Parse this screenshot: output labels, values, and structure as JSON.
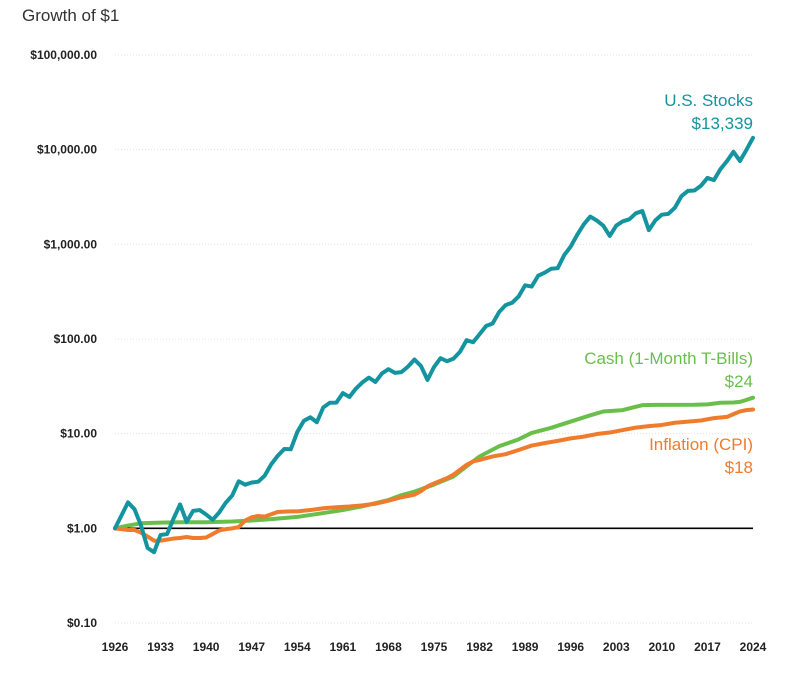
{
  "chart_data": {
    "type": "line",
    "title": "Growth of $1",
    "xlabel": "",
    "ylabel": "",
    "yscale": "log",
    "ylim": [
      0.1,
      100000
    ],
    "y_ticks": [
      0.1,
      1,
      10,
      100,
      1000,
      10000,
      100000
    ],
    "y_tick_labels": [
      "$0.10",
      "$1.00",
      "$10.00",
      "$100.00",
      "$1,000.00",
      "$10,000.00",
      "$100,000.00"
    ],
    "x_ticks": [
      1926,
      1933,
      1940,
      1947,
      1954,
      1961,
      1968,
      1975,
      1982,
      1989,
      1996,
      2003,
      2010,
      2017,
      2024
    ],
    "xlim": [
      1926,
      2024
    ],
    "baseline": 1,
    "colors": {
      "stocks": "#13949f",
      "cash": "#6abf4b",
      "inflation": "#ef7b2d",
      "baseline": "#000000",
      "grid": "#dddddd"
    },
    "series": [
      {
        "key": "stocks",
        "name": "U.S. Stocks",
        "end_label": "$13,339",
        "points": [
          [
            1926,
            1
          ],
          [
            1927,
            1.37
          ],
          [
            1928,
            1.88
          ],
          [
            1929,
            1.59
          ],
          [
            1930,
            1.07
          ],
          [
            1931,
            0.62
          ],
          [
            1932,
            0.56
          ],
          [
            1933,
            0.85
          ],
          [
            1934,
            0.87
          ],
          [
            1935,
            1.27
          ],
          [
            1936,
            1.79
          ],
          [
            1937,
            1.17
          ],
          [
            1938,
            1.53
          ],
          [
            1939,
            1.56
          ],
          [
            1940,
            1.4
          ],
          [
            1941,
            1.23
          ],
          [
            1942,
            1.47
          ],
          [
            1943,
            1.86
          ],
          [
            1944,
            2.22
          ],
          [
            1945,
            3.14
          ],
          [
            1946,
            2.89
          ],
          [
            1947,
            3.05
          ],
          [
            1948,
            3.11
          ],
          [
            1949,
            3.6
          ],
          [
            1950,
            4.75
          ],
          [
            1951,
            5.84
          ],
          [
            1952,
            6.89
          ],
          [
            1953,
            6.84
          ],
          [
            1954,
            10.41
          ],
          [
            1955,
            13.64
          ],
          [
            1956,
            14.9
          ],
          [
            1957,
            13.2
          ],
          [
            1958,
            18.97
          ],
          [
            1959,
            21.23
          ],
          [
            1960,
            21.3
          ],
          [
            1961,
            26.81
          ],
          [
            1962,
            24.42
          ],
          [
            1963,
            29.89
          ],
          [
            1964,
            34.8
          ],
          [
            1965,
            39.1
          ],
          [
            1966,
            35.18
          ],
          [
            1967,
            43.28
          ],
          [
            1968,
            48.0
          ],
          [
            1969,
            43.9
          ],
          [
            1970,
            44.7
          ],
          [
            1971,
            51.1
          ],
          [
            1972,
            60.7
          ],
          [
            1973,
            51.8
          ],
          [
            1974,
            37.0
          ],
          [
            1975,
            50.6
          ],
          [
            1976,
            62.7
          ],
          [
            1977,
            58.2
          ],
          [
            1978,
            62.0
          ],
          [
            1979,
            73.4
          ],
          [
            1980,
            97.1
          ],
          [
            1981,
            92.4
          ],
          [
            1982,
            112.2
          ],
          [
            1983,
            137.2
          ],
          [
            1984,
            145.8
          ],
          [
            1985,
            192.5
          ],
          [
            1986,
            228.2
          ],
          [
            1987,
            241.5
          ],
          [
            1988,
            281.3
          ],
          [
            1989,
            369.2
          ],
          [
            1990,
            357.7
          ],
          [
            1991,
            466.0
          ],
          [
            1992,
            501.9
          ],
          [
            1993,
            552.6
          ],
          [
            1994,
            559.8
          ],
          [
            1995,
            769.8
          ],
          [
            1996,
            946.9
          ],
          [
            1997,
            1262.0
          ],
          [
            1998,
            1623.0
          ],
          [
            1999,
            1965.0
          ],
          [
            2000,
            1786.0
          ],
          [
            2001,
            1574.0
          ],
          [
            2002,
            1227.0
          ],
          [
            2003,
            1579.0
          ],
          [
            2004,
            1751.0
          ],
          [
            2005,
            1837.0
          ],
          [
            2006,
            2127.0
          ],
          [
            2007,
            2245.0
          ],
          [
            2008,
            1414.0
          ],
          [
            2009,
            1789.0
          ],
          [
            2010,
            2057.0
          ],
          [
            2011,
            2100.0
          ],
          [
            2012,
            2437.0
          ],
          [
            2013,
            3224.0
          ],
          [
            2014,
            3669.0
          ],
          [
            2015,
            3705.0
          ],
          [
            2016,
            4152.0
          ],
          [
            2017,
            5026.0
          ],
          [
            2018,
            4763.0
          ],
          [
            2019,
            6234.0
          ],
          [
            2020,
            7573.0
          ],
          [
            2021,
            9498.0
          ],
          [
            2022,
            7601.0
          ],
          [
            2023,
            9993.0
          ],
          [
            2024,
            13339.0
          ]
        ]
      },
      {
        "key": "cash",
        "name": "Cash (1-Month T-Bills)",
        "end_label": "$24",
        "points": [
          [
            1926,
            1
          ],
          [
            1928,
            1.07
          ],
          [
            1930,
            1.13
          ],
          [
            1933,
            1.15
          ],
          [
            1936,
            1.16
          ],
          [
            1940,
            1.16
          ],
          [
            1944,
            1.18
          ],
          [
            1947,
            1.21
          ],
          [
            1950,
            1.25
          ],
          [
            1954,
            1.32
          ],
          [
            1958,
            1.45
          ],
          [
            1961,
            1.56
          ],
          [
            1964,
            1.71
          ],
          [
            1968,
            1.99
          ],
          [
            1970,
            2.24
          ],
          [
            1972,
            2.44
          ],
          [
            1975,
            2.9
          ],
          [
            1978,
            3.53
          ],
          [
            1980,
            4.52
          ],
          [
            1982,
            5.74
          ],
          [
            1985,
            7.37
          ],
          [
            1988,
            8.71
          ],
          [
            1990,
            10.18
          ],
          [
            1993,
            11.53
          ],
          [
            1996,
            13.42
          ],
          [
            1999,
            15.62
          ],
          [
            2001,
            17.14
          ],
          [
            2004,
            17.74
          ],
          [
            2007,
            20.02
          ],
          [
            2009,
            20.14
          ],
          [
            2015,
            20.2
          ],
          [
            2017,
            20.41
          ],
          [
            2019,
            21.22
          ],
          [
            2021,
            21.32
          ],
          [
            2022,
            21.66
          ],
          [
            2023,
            22.75
          ],
          [
            2024,
            24.0
          ]
        ]
      },
      {
        "key": "inflation",
        "name": "Inflation (CPI)",
        "end_label": "$18",
        "points": [
          [
            1926,
            1
          ],
          [
            1927,
            0.98
          ],
          [
            1928,
            0.96
          ],
          [
            1929,
            0.96
          ],
          [
            1930,
            0.9
          ],
          [
            1931,
            0.82
          ],
          [
            1932,
            0.74
          ],
          [
            1933,
            0.74
          ],
          [
            1934,
            0.76
          ],
          [
            1935,
            0.78
          ],
          [
            1936,
            0.79
          ],
          [
            1937,
            0.81
          ],
          [
            1938,
            0.79
          ],
          [
            1939,
            0.79
          ],
          [
            1940,
            0.8
          ],
          [
            1941,
            0.87
          ],
          [
            1942,
            0.95
          ],
          [
            1943,
            0.98
          ],
          [
            1944,
            1.0
          ],
          [
            1945,
            1.03
          ],
          [
            1946,
            1.21
          ],
          [
            1947,
            1.31
          ],
          [
            1948,
            1.35
          ],
          [
            1949,
            1.33
          ],
          [
            1950,
            1.41
          ],
          [
            1951,
            1.49
          ],
          [
            1952,
            1.5
          ],
          [
            1953,
            1.51
          ],
          [
            1954,
            1.51
          ],
          [
            1956,
            1.56
          ],
          [
            1958,
            1.63
          ],
          [
            1960,
            1.67
          ],
          [
            1962,
            1.7
          ],
          [
            1964,
            1.75
          ],
          [
            1966,
            1.82
          ],
          [
            1968,
            1.96
          ],
          [
            1970,
            2.13
          ],
          [
            1972,
            2.27
          ],
          [
            1973,
            2.47
          ],
          [
            1974,
            2.78
          ],
          [
            1975,
            2.98
          ],
          [
            1977,
            3.39
          ],
          [
            1978,
            3.69
          ],
          [
            1979,
            4.16
          ],
          [
            1980,
            4.68
          ],
          [
            1981,
            5.09
          ],
          [
            1982,
            5.28
          ],
          [
            1984,
            5.75
          ],
          [
            1986,
            6.07
          ],
          [
            1988,
            6.72
          ],
          [
            1990,
            7.49
          ],
          [
            1992,
            7.94
          ],
          [
            1994,
            8.39
          ],
          [
            1996,
            8.92
          ],
          [
            1998,
            9.31
          ],
          [
            2000,
            9.91
          ],
          [
            2002,
            10.28
          ],
          [
            2004,
            10.91
          ],
          [
            2006,
            11.58
          ],
          [
            2008,
            12.01
          ],
          [
            2010,
            12.36
          ],
          [
            2012,
            13.05
          ],
          [
            2014,
            13.41
          ],
          [
            2016,
            13.78
          ],
          [
            2018,
            14.6
          ],
          [
            2020,
            15.03
          ],
          [
            2021,
            16.08
          ],
          [
            2022,
            17.18
          ],
          [
            2023,
            17.72
          ],
          [
            2024,
            18.0
          ]
        ]
      }
    ]
  }
}
